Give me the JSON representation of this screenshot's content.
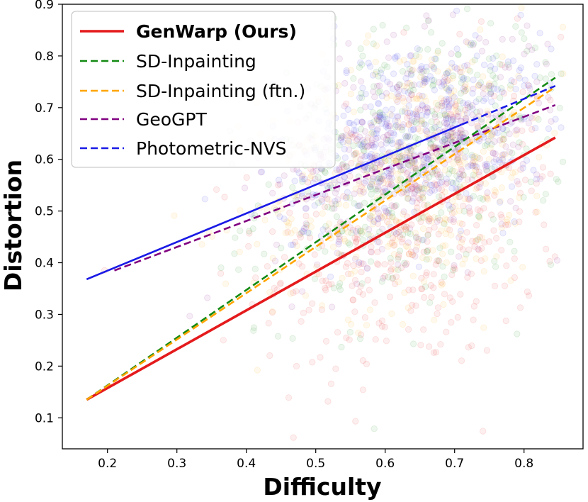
{
  "chart_data": {
    "type": "scatter",
    "title": "",
    "xlabel": "Difficulty",
    "ylabel": "Distortion",
    "xlim": [
      0.135,
      0.885
    ],
    "ylim": [
      0.04,
      0.9
    ],
    "xticks": [
      0.2,
      0.3,
      0.4,
      0.5,
      0.6,
      0.7,
      0.8
    ],
    "yticks": [
      0.1,
      0.2,
      0.3,
      0.4,
      0.5,
      0.6,
      0.7,
      0.8,
      0.9
    ],
    "xtick_labels": [
      "0.2",
      "0.3",
      "0.4",
      "0.5",
      "0.6",
      "0.7",
      "0.8"
    ],
    "ytick_labels": [
      "0.1",
      "0.2",
      "0.3",
      "0.4",
      "0.5",
      "0.6",
      "0.7",
      "0.8",
      "0.9"
    ],
    "grid": false,
    "legend_position": "top-left",
    "scatter_note": "faint translucent point clouds per method, centered around difficulty 0.55-0.75",
    "series": [
      {
        "name": "GenWarp (Ours)",
        "color": "#e41a1c",
        "style": "solid",
        "bold": true,
        "fit_x": [
          0.17,
          0.845
        ],
        "fit_y": [
          0.135,
          0.642
        ],
        "cloud": {
          "cx": 0.64,
          "cy": 0.47,
          "sx": 0.11,
          "sy": 0.15,
          "n": 420
        }
      },
      {
        "name": "SD-Inpainting",
        "color": "#138a13",
        "style": "dashed",
        "bold": false,
        "fit_x": [
          0.17,
          0.845
        ],
        "fit_y": [
          0.135,
          0.758
        ],
        "cloud": {
          "cx": 0.64,
          "cy": 0.6,
          "sx": 0.11,
          "sy": 0.13,
          "n": 420
        }
      },
      {
        "name": "SD-Inpainting (ftn.)",
        "color": "#ffa500",
        "style": "dashed",
        "bold": false,
        "fit_x": [
          0.17,
          0.845
        ],
        "fit_y": [
          0.135,
          0.74
        ],
        "cloud": {
          "cx": 0.64,
          "cy": 0.58,
          "sx": 0.11,
          "sy": 0.13,
          "n": 420
        }
      },
      {
        "name": "GeoGPT",
        "color": "#800080",
        "style": "dashed",
        "bold": false,
        "fit_x": [
          0.21,
          0.845
        ],
        "fit_y": [
          0.385,
          0.705
        ],
        "cloud": {
          "cx": 0.64,
          "cy": 0.62,
          "sx": 0.1,
          "sy": 0.1,
          "n": 420
        }
      },
      {
        "name": "Photometric-NVS",
        "color": "#1a1ae6",
        "style": "solid-then-dashed",
        "bold": false,
        "fit_x": [
          0.17,
          0.845
        ],
        "fit_y": [
          0.368,
          0.742
        ],
        "dash_from_x": 0.71,
        "cloud": {
          "cx": 0.64,
          "cy": 0.65,
          "sx": 0.1,
          "sy": 0.09,
          "n": 420
        }
      }
    ]
  }
}
